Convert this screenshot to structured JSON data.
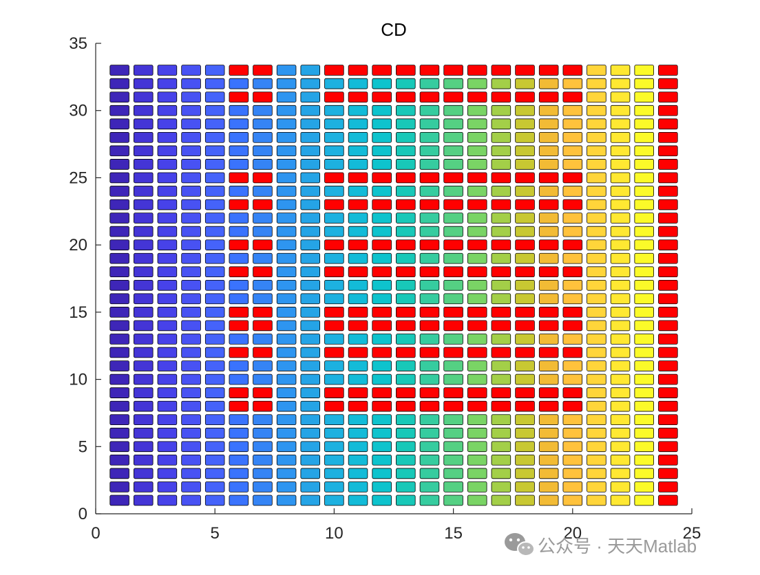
{
  "chart_data": {
    "type": "heatmap",
    "title": "CD",
    "xlabel": "",
    "ylabel": "",
    "xlim": [
      0,
      25
    ],
    "ylim": [
      0,
      35
    ],
    "xticks": [
      0,
      5,
      10,
      15,
      20,
      25
    ],
    "yticks": [
      0,
      5,
      10,
      15,
      20,
      25,
      30,
      35
    ],
    "grid": false,
    "x": [
      1,
      2,
      3,
      4,
      5,
      6,
      7,
      8,
      9,
      10,
      11,
      12,
      13,
      14,
      15,
      16,
      17,
      18,
      19,
      20,
      21,
      22,
      23,
      24
    ],
    "y": [
      1,
      2,
      3,
      4,
      5,
      6,
      7,
      8,
      9,
      10,
      11,
      12,
      13,
      14,
      15,
      16,
      17,
      18,
      19,
      20,
      21,
      22,
      23,
      24,
      25,
      26,
      27,
      28,
      29,
      30,
      31,
      32,
      33
    ],
    "column_colors": [
      "#3e26b8",
      "#4435d6",
      "#4742e9",
      "#4852f3",
      "#4563fa",
      "#3a73fd",
      "#3584f5",
      "#2e95f0",
      "#25a4e6",
      "#1db1e0",
      "#13bbd8",
      "#0ec3cd",
      "#18c8b8",
      "#36cc9f",
      "#55d083",
      "#7ad465",
      "#a3cf48",
      "#c8c832",
      "#f2bb35",
      "#ffc23c",
      "#ffd53a",
      "#ffe832",
      "#fbfa29",
      "#ff0000"
    ],
    "highlight_color": "#ff0000",
    "red_rows": [
      8,
      9,
      12,
      14,
      15,
      18,
      20,
      23,
      25,
      31,
      33
    ],
    "red_column_start": 6,
    "red_column_end": 20,
    "red_skip_columns": [
      8,
      9
    ],
    "column_24_all_red": true,
    "cell_edge_color": "#000000"
  },
  "watermark": {
    "icon": "wechat-icon",
    "text": "公众号 · 天天Matlab"
  }
}
